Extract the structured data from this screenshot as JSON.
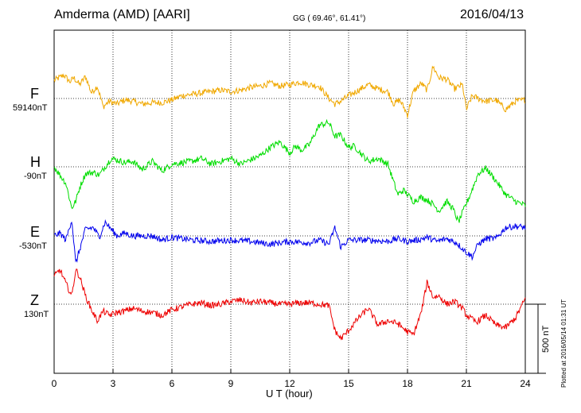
{
  "header": {
    "station": "Amderma (AMD)  [AARI]",
    "gg": "GG ( 69.46°,  61.41°)",
    "date": "2016/04/13"
  },
  "chart_data": {
    "type": "line",
    "xlabel": "U T (hour)",
    "xlim": [
      0,
      24
    ],
    "xticks": [
      0,
      3,
      6,
      9,
      12,
      15,
      18,
      21,
      24
    ],
    "grid": true,
    "scale_bar": {
      "label": "500 nT",
      "value_nT": 500
    },
    "series": [
      {
        "name": "F",
        "baseline_label": "59140nT",
        "color": "#f0a800",
        "x": [
          0,
          0.5,
          0.8,
          1.0,
          1.3,
          1.6,
          1.9,
          2.2,
          2.5,
          2.8,
          3.2,
          3.6,
          4,
          4.5,
          5,
          5.5,
          6,
          6.5,
          7,
          7.5,
          8,
          8.5,
          9,
          9.5,
          10,
          10.5,
          11,
          11.5,
          12,
          12.5,
          13,
          13.5,
          14,
          14.3,
          14.6,
          15,
          15.5,
          16,
          16.5,
          17,
          17.3,
          17.6,
          17.8,
          18,
          18.3,
          18.7,
          19,
          19.3,
          19.6,
          20,
          20.4,
          20.8,
          21,
          21.3,
          21.6,
          22,
          22.5,
          23,
          23.5,
          24
        ],
        "y": [
          130,
          170,
          120,
          150,
          100,
          160,
          40,
          90,
          -60,
          -20,
          -40,
          -10,
          -20,
          -40,
          -30,
          -30,
          -10,
          20,
          30,
          40,
          50,
          60,
          50,
          60,
          80,
          90,
          110,
          90,
          100,
          120,
          100,
          90,
          0,
          -40,
          -20,
          20,
          60,
          100,
          70,
          50,
          -40,
          -10,
          -60,
          -120,
          50,
          110,
          60,
          230,
          150,
          140,
          70,
          100,
          -80,
          20,
          0,
          -20,
          -10,
          -80,
          -20,
          -10
        ]
      },
      {
        "name": "H",
        "baseline_label": "-90nT",
        "color": "#00dd00",
        "x": [
          0,
          0.3,
          0.6,
          0.9,
          1.1,
          1.3,
          1.6,
          2.0,
          2.3,
          2.6,
          2.9,
          3.2,
          3.6,
          4,
          4.5,
          5,
          5.5,
          6,
          6.5,
          7,
          7.5,
          8,
          8.5,
          9,
          9.5,
          10,
          10.5,
          11,
          11.5,
          12,
          12.3,
          12.6,
          13,
          13.5,
          14,
          14.3,
          14.6,
          15,
          15.3,
          15.6,
          16,
          16.5,
          17,
          17.5,
          17.8,
          18,
          18.3,
          18.7,
          19,
          19.3,
          19.6,
          20,
          20.3,
          20.6,
          20.9,
          21.2,
          21.6,
          22,
          22.5,
          23,
          23.5,
          24
        ],
        "y": [
          0,
          -60,
          -120,
          -300,
          -250,
          -150,
          -50,
          -40,
          -60,
          0,
          60,
          50,
          30,
          40,
          -20,
          40,
          -30,
          20,
          30,
          40,
          60,
          20,
          40,
          60,
          20,
          50,
          80,
          140,
          180,
          100,
          150,
          120,
          160,
          300,
          320,
          220,
          230,
          140,
          150,
          100,
          40,
          60,
          20,
          -200,
          -170,
          -200,
          -250,
          -220,
          -240,
          -270,
          -320,
          -250,
          -300,
          -400,
          -300,
          -200,
          -50,
          -10,
          -100,
          -200,
          -250,
          -280
        ]
      },
      {
        "name": "E",
        "baseline_label": "-530nT",
        "color": "#0000ee",
        "x": [
          0,
          0.3,
          0.6,
          0.9,
          1.1,
          1.3,
          1.6,
          2.0,
          2.3,
          2.6,
          2.9,
          3.2,
          3.6,
          4,
          4.5,
          5,
          5.5,
          6,
          7,
          8,
          9,
          10,
          11,
          12,
          13,
          13.5,
          14,
          14.3,
          14.6,
          15,
          15.5,
          16,
          17,
          17.5,
          18,
          18.5,
          19,
          19.5,
          20,
          20.5,
          21,
          21.3,
          21.6,
          22,
          22.5,
          23,
          23.5,
          24
        ],
        "y": [
          0,
          20,
          -30,
          120,
          -200,
          -100,
          50,
          60,
          -10,
          100,
          50,
          0,
          20,
          0,
          0,
          0,
          -30,
          -10,
          -30,
          -40,
          -30,
          -40,
          -60,
          -40,
          -50,
          -30,
          -60,
          60,
          -80,
          -30,
          -30,
          -30,
          -40,
          -20,
          -40,
          -30,
          -10,
          -40,
          -20,
          -50,
          -120,
          -150,
          -60,
          -20,
          -20,
          60,
          70,
          60
        ]
      },
      {
        "name": "Z",
        "baseline_label": "130nT",
        "color": "#ee0000",
        "x": [
          0,
          0.3,
          0.6,
          0.9,
          1.1,
          1.3,
          1.6,
          1.9,
          2.2,
          2.5,
          2.8,
          3.2,
          3.6,
          4,
          4.5,
          5,
          5.5,
          6,
          6.5,
          7,
          7.5,
          8,
          8.5,
          9,
          9.5,
          10,
          10.5,
          11,
          11.5,
          12,
          12.5,
          13,
          13.5,
          14,
          14.3,
          14.6,
          15,
          15.5,
          16,
          16.5,
          17,
          17.5,
          18,
          18.3,
          18.7,
          19,
          19.3,
          19.6,
          20,
          20.4,
          20.8,
          21,
          21.5,
          22,
          22.5,
          23,
          23.5,
          24
        ],
        "y": [
          200,
          250,
          150,
          60,
          250,
          200,
          60,
          -40,
          -120,
          -50,
          -80,
          -60,
          -50,
          -30,
          -50,
          -60,
          -80,
          -40,
          -20,
          0,
          10,
          -10,
          0,
          20,
          30,
          10,
          20,
          10,
          0,
          0,
          10,
          10,
          0,
          -10,
          -190,
          -250,
          -190,
          -100,
          -30,
          -150,
          -120,
          -140,
          -200,
          -220,
          -60,
          160,
          50,
          60,
          0,
          20,
          -30,
          -80,
          -130,
          -80,
          -150,
          -170,
          -100,
          40
        ]
      }
    ]
  }
}
